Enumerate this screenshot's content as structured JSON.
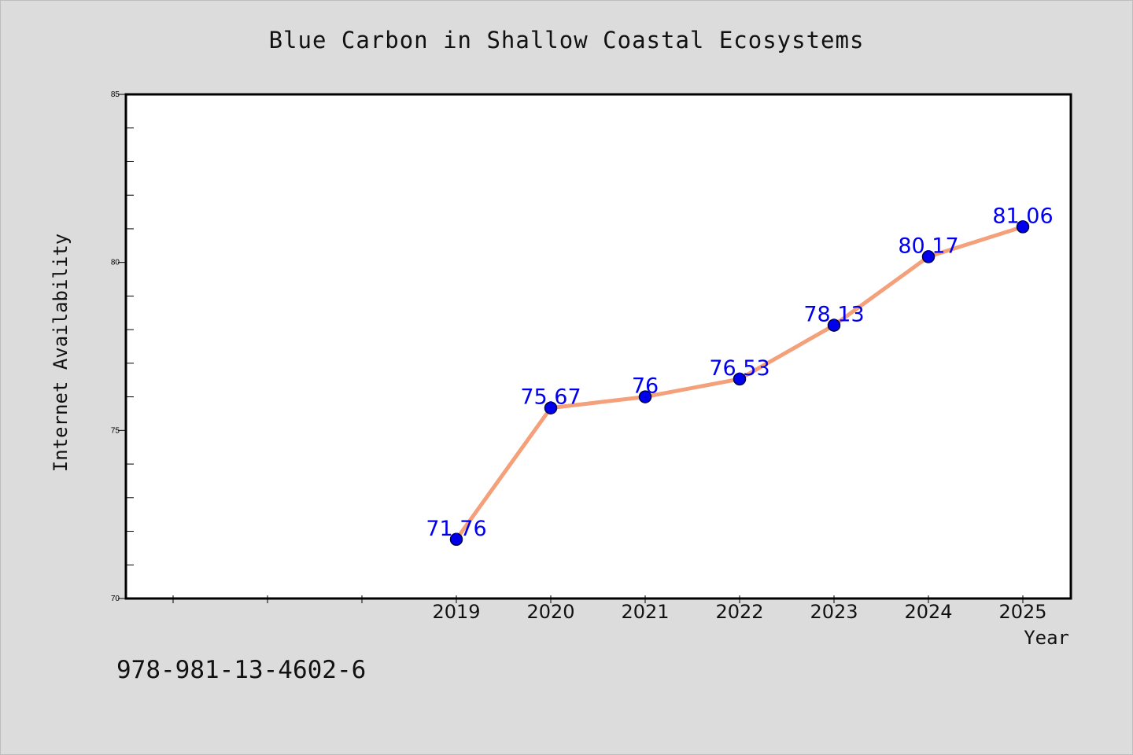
{
  "chart_data": {
    "type": "line",
    "title": "Blue Carbon in Shallow Coastal Ecosystems",
    "xlabel": "Year",
    "ylabel": "Internet Availability",
    "x": [
      "2019",
      "2020",
      "2021",
      "2022",
      "2023",
      "2024",
      "2025"
    ],
    "series": [
      {
        "values": [
          71.76,
          75.67,
          76,
          76.53,
          78.13,
          80.17,
          81.06
        ],
        "labels": [
          "71.76",
          "75.67",
          "76",
          "76.53",
          "78.13",
          "80.17",
          "81.06"
        ],
        "line_color": "#f4a07a",
        "marker_color": "#0000ee"
      }
    ],
    "ylim": [
      70,
      85
    ],
    "yticks": [
      "70",
      "75",
      "80",
      "85"
    ],
    "grid": false,
    "legend": "none"
  },
  "footer": {
    "text": "978-981-13-4602-6"
  }
}
